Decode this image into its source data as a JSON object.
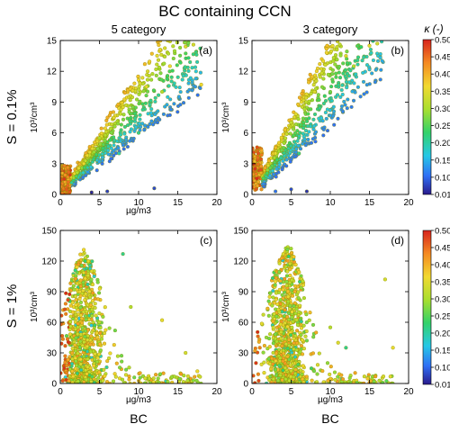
{
  "figure": {
    "title": "BC containing CCN",
    "column_titles": [
      "5 category",
      "3  category"
    ],
    "row_labels": [
      "S = 0.1%",
      "S = 1%"
    ],
    "bottom_labels": [
      "BC",
      "BC"
    ],
    "colorbar": {
      "label": "κ (-)",
      "ticks": [
        "0.50",
        "0.45",
        "0.40",
        "0.35",
        "0.30",
        "0.25",
        "0.20",
        "0.15",
        "0.10",
        "0.01"
      ],
      "range": [
        0.01,
        0.5
      ],
      "colormap": [
        "#2a1a8c",
        "#2f6ff5",
        "#26c8e6",
        "#33d26a",
        "#a9df2f",
        "#f2d930",
        "#f58a22",
        "#d7231c"
      ]
    },
    "marker": {
      "edge_color": "#8a8a00"
    }
  },
  "chart_data": [
    {
      "type": "scatter",
      "panel": "(a)",
      "column": "5 category",
      "row": "S = 0.1%",
      "xlabel": "µg/m3",
      "ylabel": "10³/cm³",
      "xlim": [
        0,
        20
      ],
      "ylim": [
        0,
        15
      ],
      "xticks": [
        "0",
        "5",
        "10",
        "15",
        "20"
      ],
      "yticks": [
        "0",
        "3",
        "6",
        "9",
        "12",
        "15"
      ],
      "cluster": {
        "slope_low": 0.55,
        "slope_high": 1.2,
        "x_max": 18,
        "points": 850
      },
      "points": [
        {
          "x": 0.5,
          "y": 1.5,
          "kappa": 0.49
        },
        {
          "x": 1.0,
          "y": 1.2,
          "kappa": 0.45
        },
        {
          "x": 3.0,
          "y": 3.0,
          "kappa": 0.35
        },
        {
          "x": 5.0,
          "y": 5.5,
          "kappa": 0.3
        },
        {
          "x": 7.5,
          "y": 4.0,
          "kappa": 0.18
        },
        {
          "x": 8.0,
          "y": 8.5,
          "kappa": 0.34
        },
        {
          "x": 10.0,
          "y": 6.0,
          "kappa": 0.2
        },
        {
          "x": 11.0,
          "y": 10.5,
          "kappa": 0.35
        },
        {
          "x": 13.0,
          "y": 10.0,
          "kappa": 0.3
        },
        {
          "x": 14.0,
          "y": 12.5,
          "kappa": 0.36
        },
        {
          "x": 16.0,
          "y": 14.4,
          "kappa": 0.34
        },
        {
          "x": 17.0,
          "y": 14.6,
          "kappa": 0.33
        },
        {
          "x": 18.0,
          "y": 10.7,
          "kappa": 0.36
        },
        {
          "x": 4.0,
          "y": 0.2,
          "kappa": 0.02
        },
        {
          "x": 6.0,
          "y": 0.3,
          "kappa": 0.04
        },
        {
          "x": 12.0,
          "y": 0.6,
          "kappa": 0.05
        }
      ]
    },
    {
      "type": "scatter",
      "panel": "(b)",
      "column": "3  category",
      "row": "S = 0.1%",
      "xlabel": "",
      "ylabel": "10³/cm³",
      "xlim": [
        0,
        20
      ],
      "ylim": [
        0,
        15
      ],
      "xticks": [
        "0",
        "5",
        "10",
        "15",
        "20"
      ],
      "yticks": [
        "0",
        "3",
        "6",
        "9",
        "12",
        "15"
      ],
      "cluster": {
        "slope_low": 0.65,
        "slope_high": 1.55,
        "x_max": 17,
        "points": 850
      },
      "points": [
        {
          "x": 0.4,
          "y": 2.5,
          "kappa": 0.49
        },
        {
          "x": 0.8,
          "y": 4.0,
          "kappa": 0.47
        },
        {
          "x": 3.0,
          "y": 4.0,
          "kappa": 0.35
        },
        {
          "x": 5.0,
          "y": 7.0,
          "kappa": 0.32
        },
        {
          "x": 6.0,
          "y": 4.0,
          "kappa": 0.2
        },
        {
          "x": 8.0,
          "y": 10.0,
          "kappa": 0.34
        },
        {
          "x": 10.0,
          "y": 10.0,
          "kappa": 0.25
        },
        {
          "x": 12.0,
          "y": 13.5,
          "kappa": 0.34
        },
        {
          "x": 13.0,
          "y": 12.5,
          "kappa": 0.3
        },
        {
          "x": 15.0,
          "y": 14.5,
          "kappa": 0.35
        },
        {
          "x": 16.0,
          "y": 14.7,
          "kappa": 0.33
        },
        {
          "x": 3.0,
          "y": 0.3,
          "kappa": 0.08
        },
        {
          "x": 5.0,
          "y": 0.5,
          "kappa": 0.05
        },
        {
          "x": 7.0,
          "y": 0.3,
          "kappa": 0.03
        }
      ]
    },
    {
      "type": "scatter",
      "panel": "(c)",
      "column": "5 category",
      "row": "S = 1%",
      "xlabel": "µg/m3",
      "ylabel": "10³/cm³",
      "xlim": [
        0,
        20
      ],
      "ylim": [
        0,
        150
      ],
      "xticks": [
        "0",
        "5",
        "10",
        "15",
        "20"
      ],
      "yticks": [
        "0",
        "30",
        "60",
        "90",
        "120",
        "150"
      ],
      "cluster": {
        "peak_x": 3.0,
        "peak_y": 120,
        "x_max": 18,
        "points": 950
      },
      "points": [
        {
          "x": 0.5,
          "y": 15,
          "kappa": 0.49
        },
        {
          "x": 1.5,
          "y": 30,
          "kappa": 0.4
        },
        {
          "x": 3.0,
          "y": 131,
          "kappa": 0.36
        },
        {
          "x": 4.0,
          "y": 110,
          "kappa": 0.34
        },
        {
          "x": 2.5,
          "y": 90,
          "kappa": 0.35
        },
        {
          "x": 5.0,
          "y": 60,
          "kappa": 0.3
        },
        {
          "x": 6.0,
          "y": 22,
          "kappa": 0.38
        },
        {
          "x": 7.0,
          "y": 52,
          "kappa": 0.25
        },
        {
          "x": 8.0,
          "y": 127,
          "kappa": 0.2
        },
        {
          "x": 9.0,
          "y": 75,
          "kappa": 0.3
        },
        {
          "x": 13.0,
          "y": 62,
          "kappa": 0.35
        },
        {
          "x": 16.0,
          "y": 30,
          "kappa": 0.33
        },
        {
          "x": 17.5,
          "y": 12,
          "kappa": 0.36
        }
      ]
    },
    {
      "type": "scatter",
      "panel": "(d)",
      "column": "3  category",
      "row": "S = 1%",
      "xlabel": "µg/m3",
      "ylabel": "10³/cm³",
      "xlim": [
        0,
        20
      ],
      "ylim": [
        0,
        150
      ],
      "xticks": [
        "0",
        "5",
        "10",
        "15",
        "20"
      ],
      "yticks": [
        "0",
        "30",
        "60",
        "90",
        "120",
        "150"
      ],
      "cluster": {
        "peak_x": 4.5,
        "peak_y": 125,
        "x_max": 18,
        "points": 950
      },
      "points": [
        {
          "x": 0.5,
          "y": 20,
          "kappa": 0.49
        },
        {
          "x": 1.0,
          "y": 35,
          "kappa": 0.44
        },
        {
          "x": 3.0,
          "y": 100,
          "kappa": 0.36
        },
        {
          "x": 4.0,
          "y": 127,
          "kappa": 0.34
        },
        {
          "x": 5.0,
          "y": 122,
          "kappa": 0.33
        },
        {
          "x": 6.0,
          "y": 70,
          "kappa": 0.3
        },
        {
          "x": 7.0,
          "y": 42,
          "kappa": 0.25
        },
        {
          "x": 10.0,
          "y": 55,
          "kappa": 0.3
        },
        {
          "x": 11.0,
          "y": 40,
          "kappa": 0.34
        },
        {
          "x": 12.0,
          "y": 35,
          "kappa": 0.2
        },
        {
          "x": 17.0,
          "y": 102,
          "kappa": 0.33
        },
        {
          "x": 18.0,
          "y": 35,
          "kappa": 0.35
        }
      ]
    }
  ]
}
